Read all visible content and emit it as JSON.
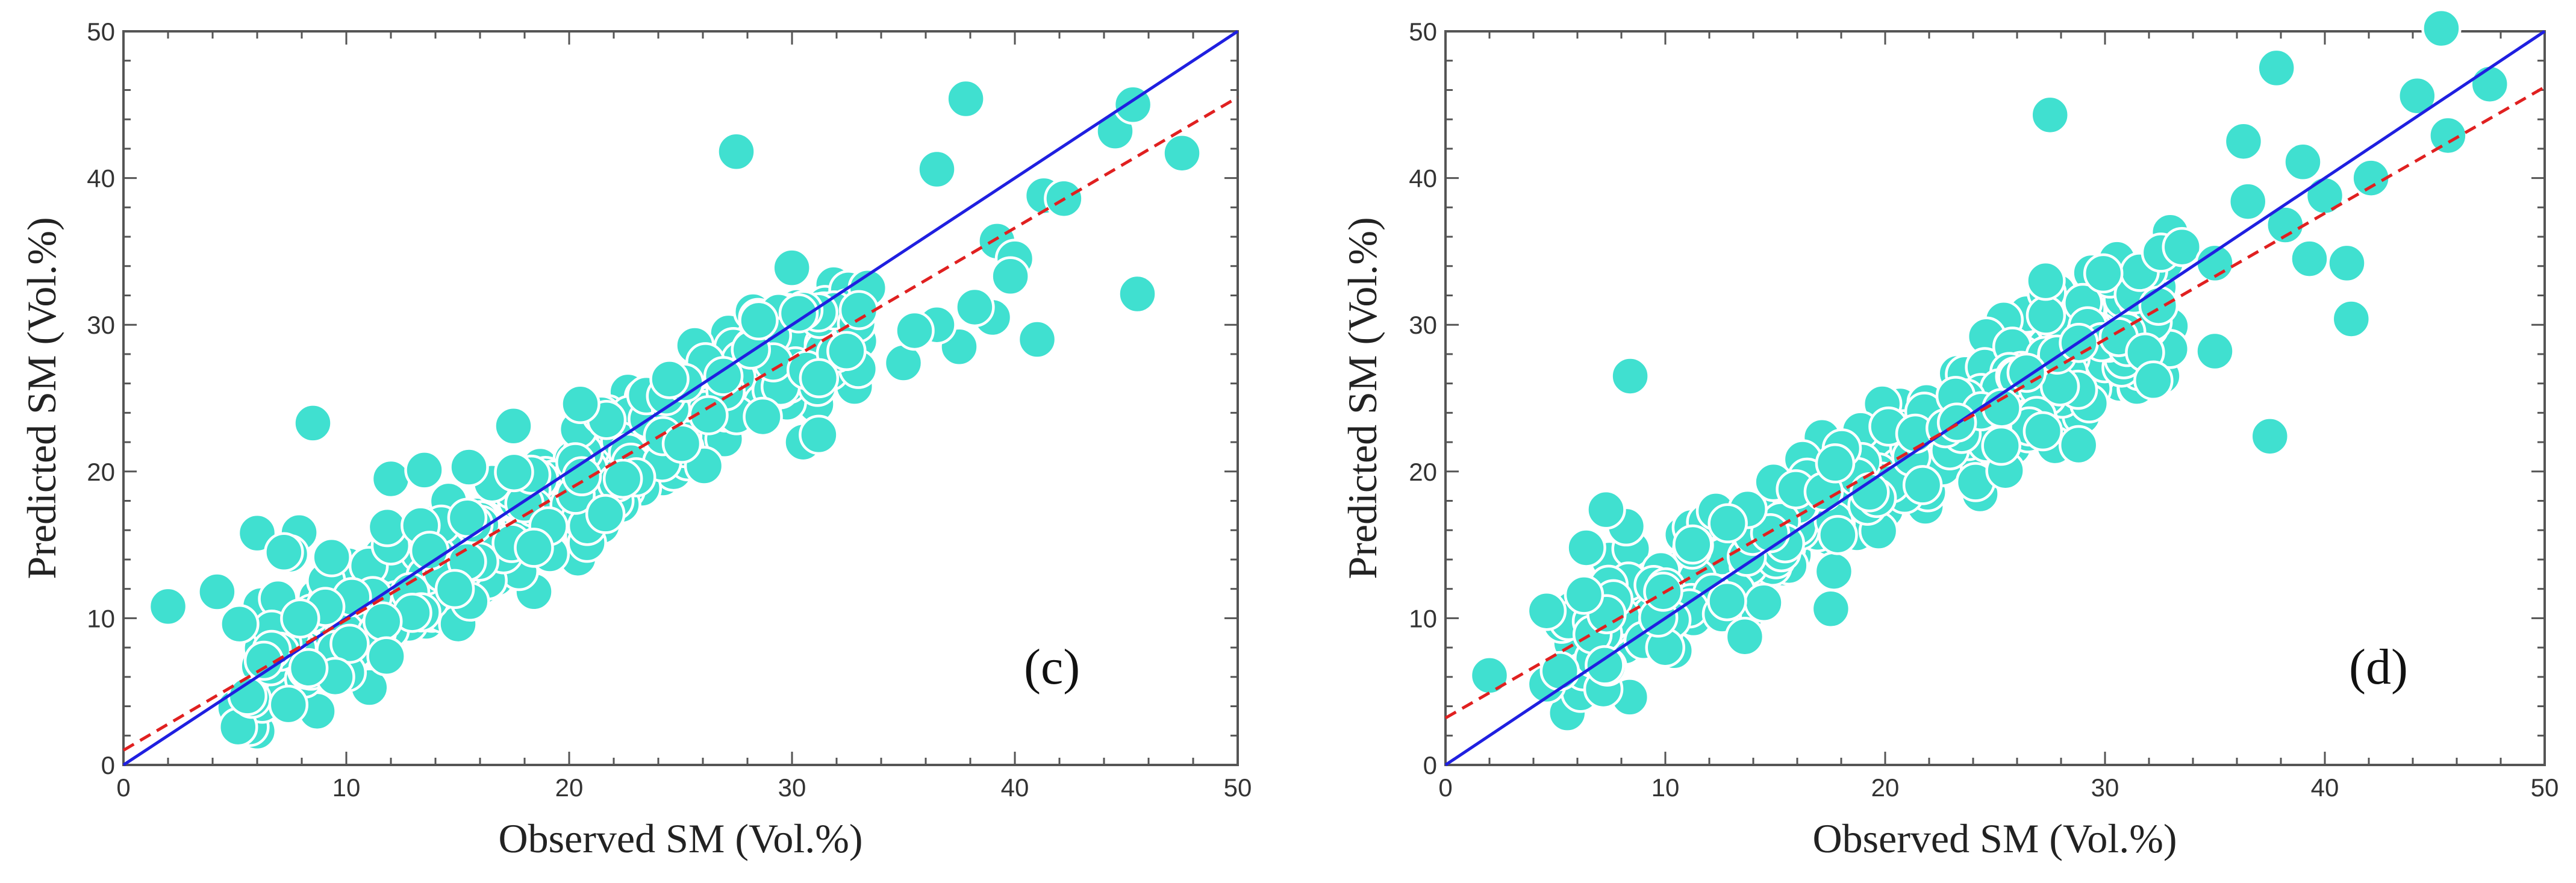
{
  "colors": {
    "points": "#40E0D0",
    "point_edge": "#ffffff",
    "one_to_one": "#1f1fe0",
    "fit": "#e02020",
    "frame": "#555555"
  },
  "chart_data": [
    {
      "type": "scatter",
      "panel_label": "(c)",
      "xlabel": "Observed SM (Vol.%)",
      "ylabel": "Predicted SM (Vol.%)",
      "xlim": [
        0,
        50
      ],
      "ylim": [
        0,
        50
      ],
      "x_ticks": [
        "0",
        "10",
        "20",
        "30",
        "40",
        "50"
      ],
      "y_ticks": [
        "0",
        "10",
        "20",
        "30",
        "40",
        "50"
      ],
      "one_to_one": {
        "slope": 1,
        "intercept": 0
      },
      "fit_line": {
        "slope": 0.89,
        "intercept": 1.0
      },
      "highlight_points": [
        [
          2,
          10.8
        ],
        [
          4.2,
          11.8
        ],
        [
          6,
          15.8
        ],
        [
          7.2,
          14.5
        ],
        [
          8.5,
          23.3
        ],
        [
          7.4,
          4.1
        ],
        [
          27.5,
          41.8
        ],
        [
          28.5,
          30.3
        ],
        [
          37.8,
          45.4
        ],
        [
          36.5,
          40.6
        ],
        [
          44.5,
          43.2
        ],
        [
          45.3,
          45
        ],
        [
          47.5,
          41.7
        ],
        [
          45.5,
          32.1
        ],
        [
          41,
          29
        ],
        [
          41.3,
          38.8
        ],
        [
          42.2,
          38.6
        ],
        [
          39.2,
          35.7
        ],
        [
          40,
          34.5
        ],
        [
          39.8,
          33.3
        ],
        [
          37.5,
          28.5
        ],
        [
          39,
          30.5
        ],
        [
          38.2,
          31.2
        ],
        [
          36.5,
          30
        ],
        [
          35,
          27.4
        ],
        [
          35.5,
          29.6
        ],
        [
          33.4,
          32.5
        ],
        [
          33,
          31
        ],
        [
          30.5,
          22
        ],
        [
          31.2,
          22.5
        ],
        [
          20.5,
          24.6
        ],
        [
          17.5,
          23.1
        ],
        [
          12,
          19.5
        ],
        [
          13.5,
          20.1
        ],
        [
          15.5,
          20.3
        ],
        [
          24.5,
          26.3
        ],
        [
          11.8,
          7.4
        ],
        [
          9.5,
          6
        ],
        [
          8.3,
          6.6
        ],
        [
          5.2,
          9.6
        ],
        [
          6.3,
          7.1
        ]
      ],
      "scatter_cloud": {
        "n": 430,
        "x_range": [
          5,
          33
        ],
        "residual_sd": 2.2,
        "seed": 11
      }
    },
    {
      "type": "scatter",
      "panel_label": "(d)",
      "xlabel": "Observed SM (Vol.%)",
      "ylabel": "Predicted SM (Vol.%)",
      "xlim": [
        0,
        50
      ],
      "ylim": [
        0,
        50
      ],
      "x_ticks": [
        "0",
        "10",
        "20",
        "30",
        "40",
        "50"
      ],
      "y_ticks": [
        "0",
        "10",
        "20",
        "30",
        "40",
        "50"
      ],
      "one_to_one": {
        "slope": 1,
        "intercept": 0
      },
      "fit_line": {
        "slope": 0.86,
        "intercept": 3.2
      },
      "highlight_points": [
        [
          2,
          6.1
        ],
        [
          8.4,
          26.5
        ],
        [
          7.3,
          17.4
        ],
        [
          6.4,
          14.8
        ],
        [
          4.6,
          10.5
        ],
        [
          27.5,
          44.3
        ],
        [
          27.3,
          33
        ],
        [
          37.8,
          47.5
        ],
        [
          45.3,
          50.2
        ],
        [
          47.5,
          46.4
        ],
        [
          44.2,
          45.6
        ],
        [
          45.6,
          42.9
        ],
        [
          36.3,
          42.5
        ],
        [
          36.5,
          38.4
        ],
        [
          39,
          41.1
        ],
        [
          42.1,
          40
        ],
        [
          40,
          38.8
        ],
        [
          38.2,
          36.8
        ],
        [
          39.3,
          34.5
        ],
        [
          41,
          34.2
        ],
        [
          41.2,
          30.4
        ],
        [
          37.5,
          22.4
        ],
        [
          35,
          28.2
        ],
        [
          33.5,
          35.3
        ],
        [
          35,
          34.2
        ],
        [
          32.2,
          26.2
        ],
        [
          28.8,
          21.8
        ],
        [
          4.6,
          5.5
        ],
        [
          5.2,
          6.4
        ],
        [
          6.3,
          11.6
        ]
      ],
      "scatter_cloud": {
        "n": 430,
        "x_range": [
          5,
          33
        ],
        "residual_sd": 2.1,
        "seed": 23
      }
    }
  ]
}
